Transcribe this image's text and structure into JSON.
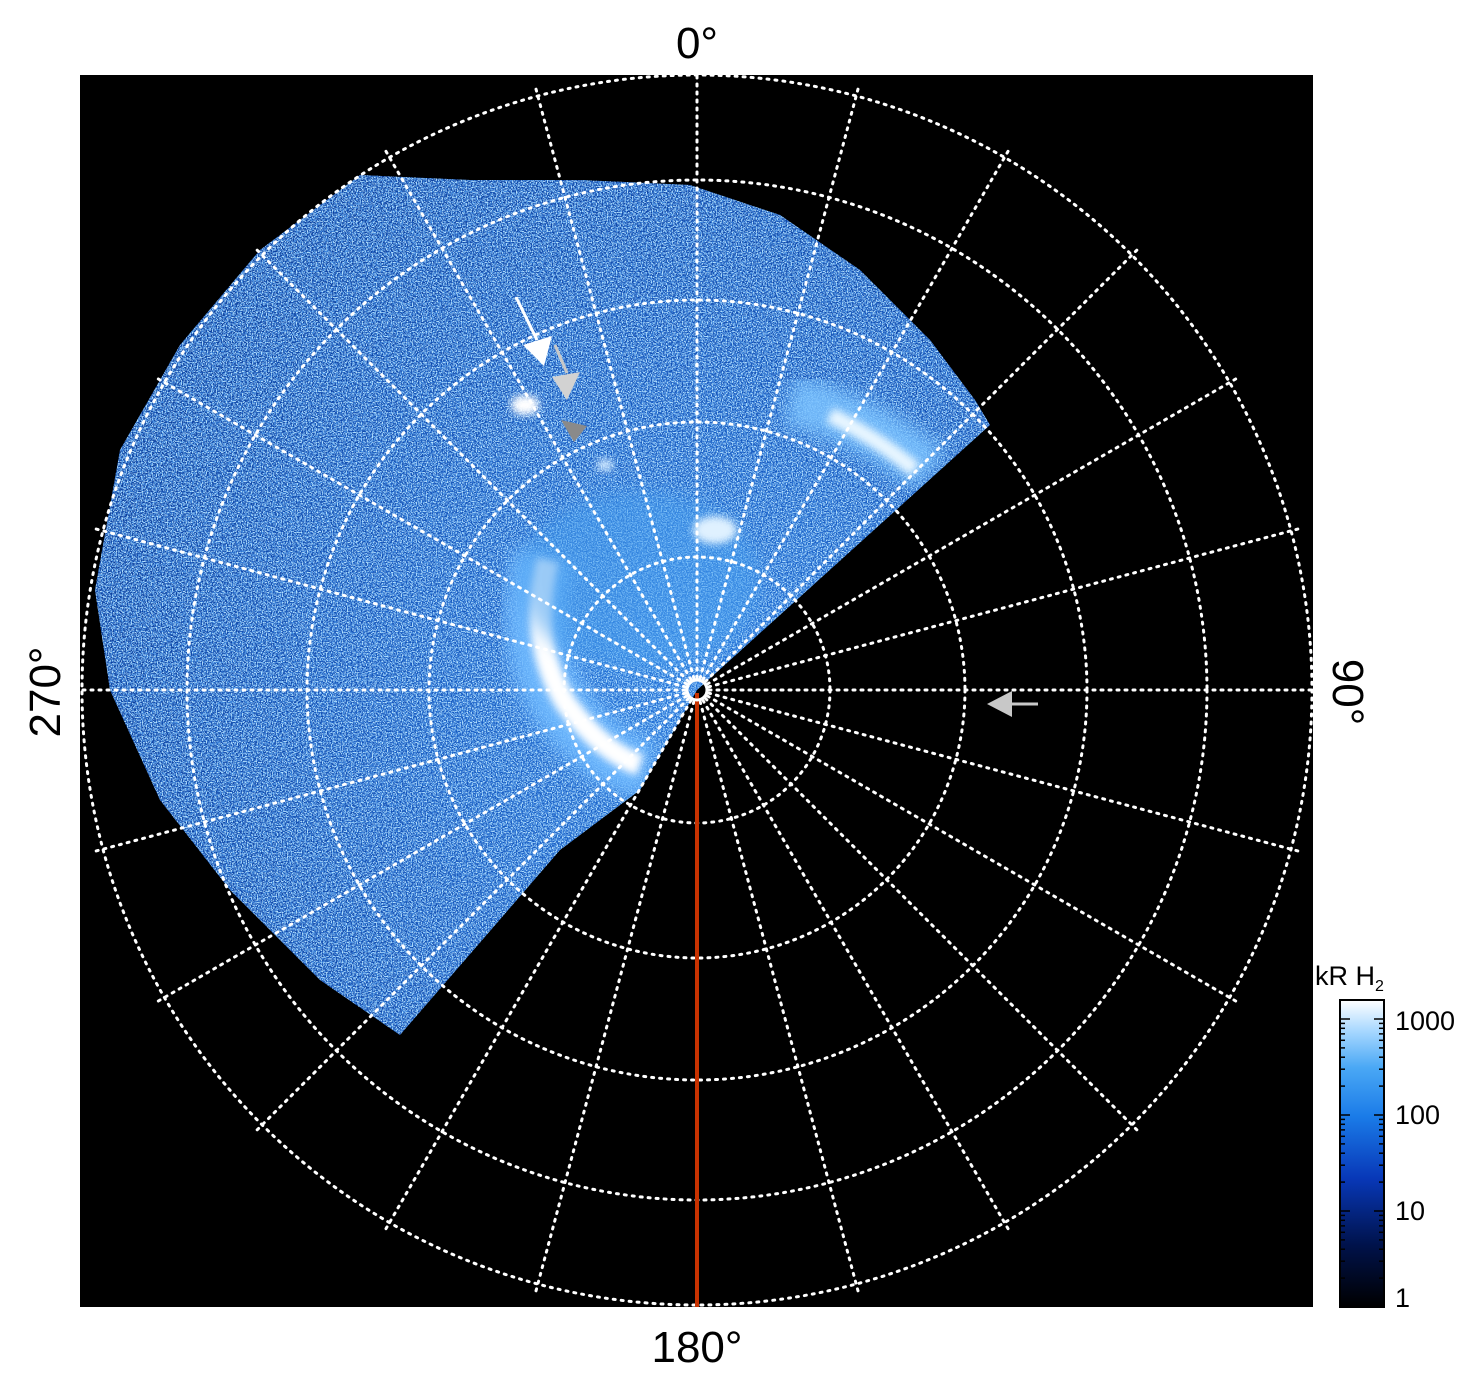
{
  "figure": {
    "labels": {
      "top": "0°",
      "right": "90°",
      "bottom": "180°",
      "left": "270°"
    },
    "colorbar": {
      "title": "kR H",
      "title_sub": "2",
      "ticks": [
        "1000",
        "100",
        "10",
        "1"
      ],
      "colors": [
        "#000000",
        "#00124a",
        "#0838b8",
        "#1a7be8",
        "#4aa8f5",
        "#a8d8ff",
        "#ffffff"
      ]
    },
    "colors": {
      "background": "#000000",
      "grid": "#ffffff",
      "meridian": "#c83200",
      "arrow_white": "#ffffff",
      "arrow_grey": "#c8c8c8",
      "arrow_dark": "#8a8a8a"
    }
  }
}
